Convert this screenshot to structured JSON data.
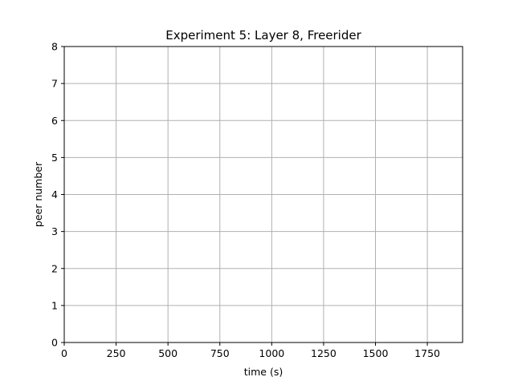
{
  "chart_data": {
    "type": "line",
    "title": "Experiment 5: Layer 8, Freerider",
    "xlabel": "time (s)",
    "ylabel": "peer number",
    "xlim": [
      0,
      1920
    ],
    "ylim": [
      0,
      8
    ],
    "x_ticks": [
      0,
      250,
      500,
      750,
      1000,
      1250,
      1500,
      1750
    ],
    "x_tick_labels": [
      "0",
      "250",
      "500",
      "750",
      "1000",
      "1250",
      "1500",
      "1750"
    ],
    "y_ticks": [
      0,
      1,
      2,
      3,
      4,
      5,
      6,
      7,
      8
    ],
    "y_tick_labels": [
      "0",
      "1",
      "2",
      "3",
      "4",
      "5",
      "6",
      "7",
      "8"
    ],
    "grid": true,
    "series": []
  }
}
